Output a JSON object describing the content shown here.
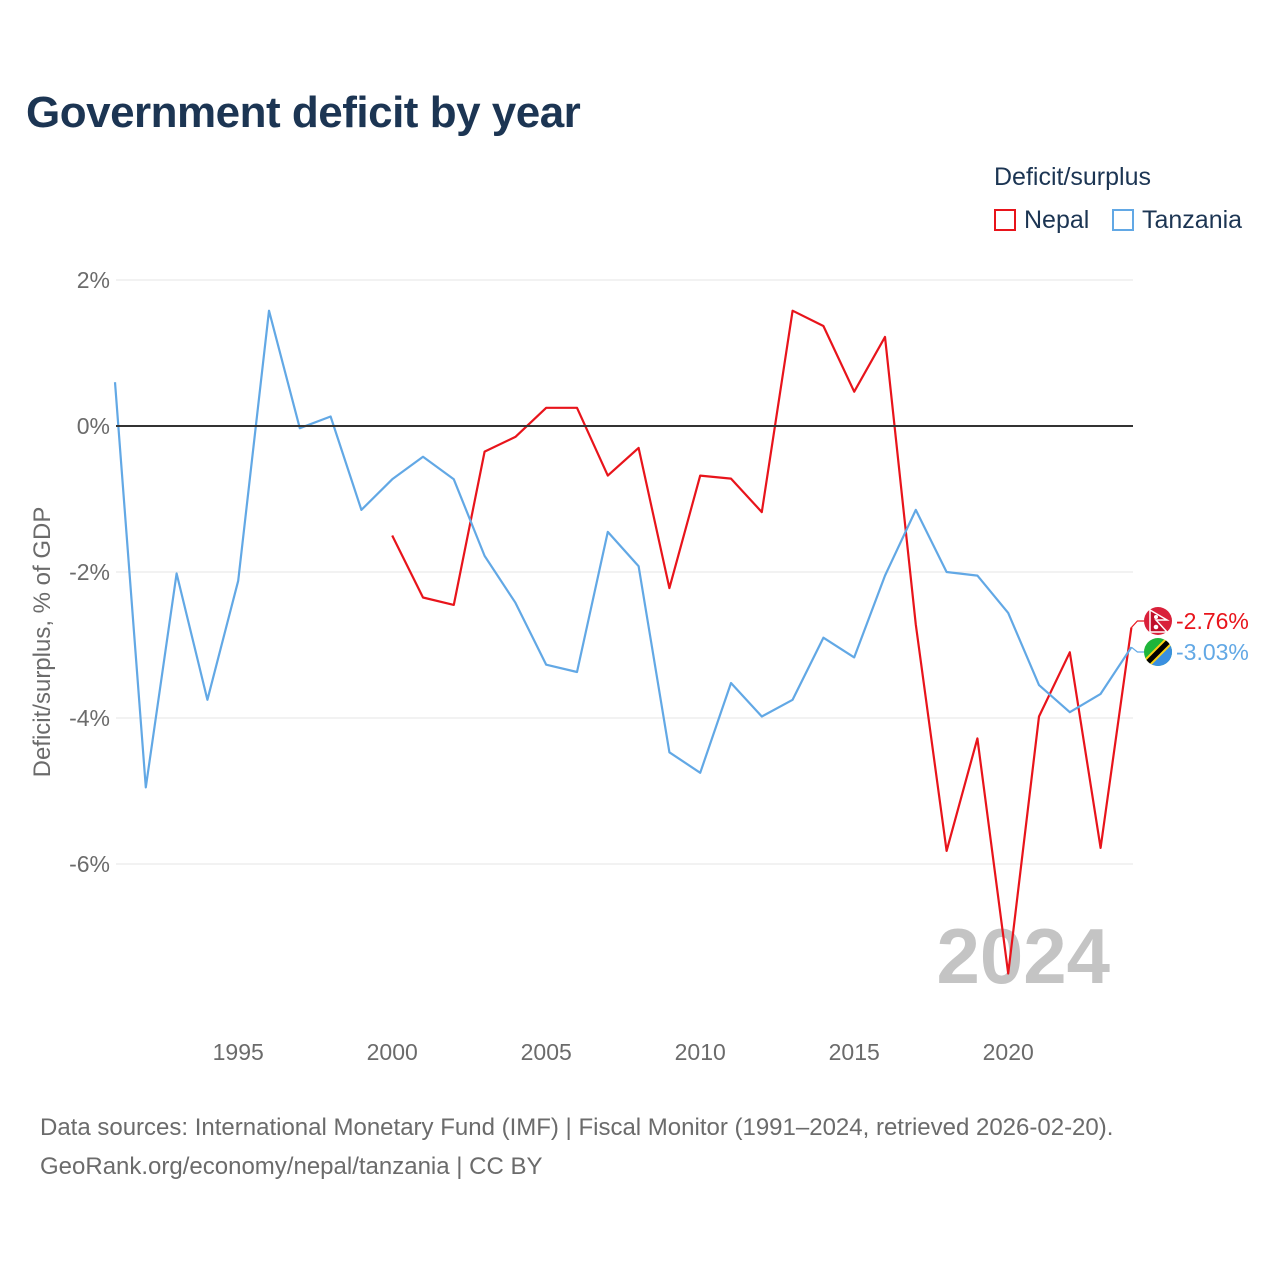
{
  "chart_data": {
    "type": "line",
    "title": "Government deficit by year",
    "ylabel": "Deficit/surplus, % of GDP",
    "xlabel": "",
    "xlim": [
      1991,
      2024
    ],
    "ylim": [
      -8.2,
      2.4
    ],
    "y_ticks": [
      2,
      0,
      -2,
      -4,
      -6
    ],
    "y_tick_labels": [
      "2%",
      "0%",
      "-2%",
      "-4%",
      "-6%"
    ],
    "x_ticks": [
      1995,
      2000,
      2005,
      2010,
      2015,
      2020
    ],
    "x_tick_labels": [
      "1995",
      "2000",
      "2005",
      "2010",
      "2015",
      "2020"
    ],
    "legend_title": "Deficit/surplus",
    "legend_position": "top-right",
    "year_watermark": "2024",
    "series": [
      {
        "name": "Nepal",
        "color": "#e8141b",
        "end_label": "-2.76%",
        "flag_icon": "nepal-flag-icon",
        "x": [
          2000,
          2001,
          2002,
          2003,
          2004,
          2005,
          2006,
          2007,
          2008,
          2009,
          2010,
          2011,
          2012,
          2013,
          2014,
          2015,
          2016,
          2017,
          2018,
          2019,
          2020,
          2021,
          2022,
          2023,
          2024
        ],
        "values": [
          -1.5,
          -2.35,
          -2.45,
          -0.35,
          -0.15,
          0.25,
          0.25,
          -0.68,
          -0.3,
          -2.22,
          -0.68,
          -0.72,
          -1.18,
          1.58,
          1.37,
          0.47,
          1.22,
          -2.72,
          -5.82,
          -4.28,
          -7.5,
          -3.98,
          -3.1,
          -5.78,
          -2.76
        ]
      },
      {
        "name": "Tanzania",
        "color": "#62a8e5",
        "end_label": "-3.03%",
        "flag_icon": "tanzania-flag-icon",
        "x": [
          1991,
          1992,
          1993,
          1994,
          1995,
          1996,
          1997,
          1998,
          1999,
          2000,
          2001,
          2002,
          2003,
          2004,
          2005,
          2006,
          2007,
          2008,
          2009,
          2010,
          2011,
          2012,
          2013,
          2014,
          2015,
          2016,
          2017,
          2018,
          2019,
          2020,
          2021,
          2022,
          2023,
          2024
        ],
        "values": [
          0.6,
          -4.95,
          -2.02,
          -3.75,
          -2.12,
          1.58,
          -0.03,
          0.13,
          -1.15,
          -0.73,
          -0.42,
          -0.73,
          -1.78,
          -2.42,
          -3.27,
          -3.37,
          -1.45,
          -1.92,
          -4.47,
          -4.75,
          -3.52,
          -3.98,
          -3.75,
          -2.9,
          -3.17,
          -2.05,
          -1.15,
          -2.0,
          -2.05,
          -2.56,
          -3.55,
          -3.92,
          -3.67,
          -3.03
        ]
      }
    ]
  },
  "footer": {
    "source_line": "Data sources: International Monetary Fund (IMF) | Fiscal Monitor (1991–2024, retrieved 2026-02-20).",
    "credit_line": "GeoRank.org/economy/nepal/tanzania | CC BY"
  }
}
